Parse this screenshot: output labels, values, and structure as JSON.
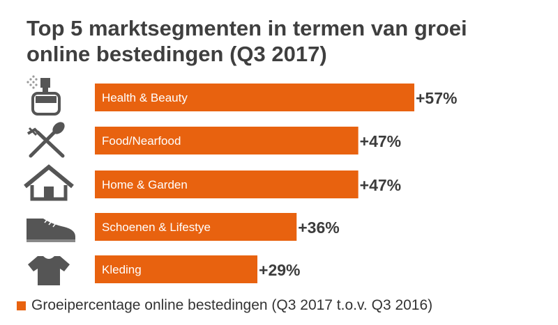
{
  "title_line1": "Top 5 marktsegmenten in termen van groei",
  "title_line2": "online bestedingen (Q3 2017)",
  "chart_data": {
    "type": "bar",
    "orientation": "horizontal",
    "categories": [
      "Health & Beauty",
      "Food/Nearfood",
      "Home & Garden",
      "Schoenen & Lifestye",
      "Kleding"
    ],
    "icons": [
      "perfume-icon",
      "fork-spoon-icon",
      "house-icon",
      "shoe-icon",
      "tshirt-icon"
    ],
    "series": [
      {
        "name": "Groeipercentage online bestedingen (Q3 2017 t.o.v. Q3 2016)",
        "values": [
          57,
          47,
          47,
          36,
          29
        ],
        "labels": [
          "+57%",
          "+47%",
          "+47%",
          "+36%",
          "+29%"
        ]
      }
    ],
    "xlim": [
      0,
      57
    ],
    "grid": false,
    "legend_position": "bottom-left"
  },
  "colors": {
    "bar": "#e8620f",
    "bar_text": "#ffffff",
    "icon": "#555555"
  }
}
